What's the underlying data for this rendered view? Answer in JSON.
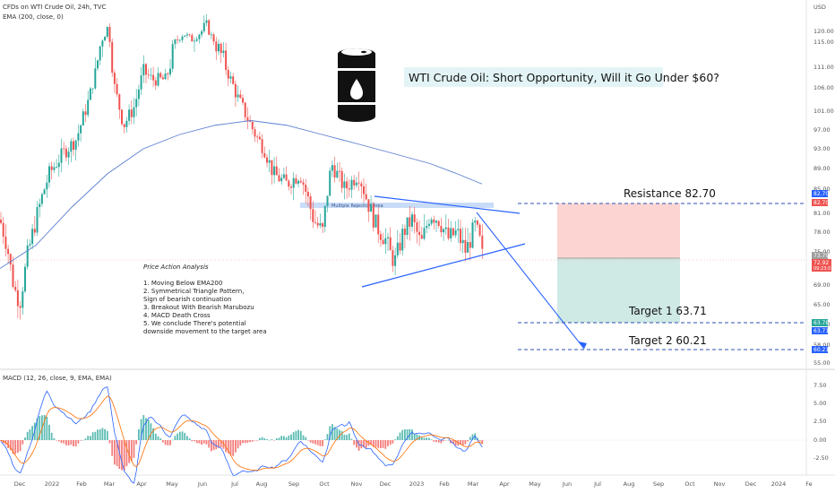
{
  "header": {
    "symbol_line": "CFDs on WTI Crude Oil, 24h, TVC",
    "ema_line": "EMA (200, close, 0)",
    "currency": "USD",
    "macd_line": "MACD (12, 26, close, 9, EMA, EMA)"
  },
  "title": "WTI Crude Oil: Short Opportunity, Will it Go Under $60?",
  "zone_label": "Multiple Rejection Area",
  "analysis": {
    "heading": "Price Action Analysis",
    "lines": [
      "1. Moving Below EMA200",
      "2. Symmetrical Triangle Pattern,",
      "    Sign of bearish continuation",
      "3. Breakout With Bearish Marubozu",
      "4. MACD Death Cross",
      "5. We conclude There's potential",
      "    downside movement to the target area"
    ]
  },
  "levels": {
    "resistance_label": "Resistance 82.70",
    "target1_label": "Target 1   63.71",
    "target2_label": "Target 2   60.21"
  },
  "price_tags": {
    "resistance_blue": "82.70",
    "resistance_red": "82.70",
    "current_grey": "73.79",
    "current_red": "72.92",
    "current_time": "09:23:01",
    "t1_green": "63.78",
    "t1_blue": "63.71",
    "t2_blue": "60.21"
  },
  "colors": {
    "up": "#26a69a",
    "down": "#ef5350",
    "ema": "#5b7fd1",
    "trend": "#2962ff",
    "risk_zone": "#fcd5d3",
    "reward_zone": "#cfe9e4"
  },
  "chart_data": {
    "type": "candlestick",
    "price_axis": {
      "ticks": [
        "120.00",
        "115.00",
        "111.00",
        "106.00",
        "101.00",
        "97.00",
        "93.00",
        "89.00",
        "85.00",
        "81.00",
        "78.00",
        "75.00",
        "69.00",
        "65.00",
        "61.50",
        "58.00",
        "55.00"
      ],
      "values": [
        120,
        115,
        111,
        106,
        101,
        97,
        93,
        89,
        85,
        81,
        78,
        75,
        69,
        65,
        61.5,
        58,
        55
      ]
    },
    "macd_axis": {
      "ticks": [
        "7.50",
        "5.00",
        "2.50",
        "0.00",
        "-2.50"
      ],
      "values": [
        7.5,
        5,
        2.5,
        0,
        -2.5
      ]
    },
    "time_axis": {
      "ticks": [
        "Dec",
        "2022",
        "Feb",
        "Mar",
        "Apr",
        "May",
        "Jun",
        "Jul",
        "Aug",
        "Sep",
        "Oct",
        "Nov",
        "Dec",
        "2023",
        "Feb",
        "Mar",
        "Apr",
        "May",
        "Jun",
        "Jul",
        "Aug",
        "Sep",
        "Oct",
        "Nov",
        "Dec",
        "2024",
        "Fe"
      ]
    },
    "close_path": [
      [
        0,
        80
      ],
      [
        8,
        76
      ],
      [
        15,
        69
      ],
      [
        22,
        65
      ],
      [
        30,
        74
      ],
      [
        40,
        80
      ],
      [
        55,
        88
      ],
      [
        70,
        92
      ],
      [
        85,
        95
      ],
      [
        100,
        104
      ],
      [
        110,
        113
      ],
      [
        120,
        121
      ],
      [
        128,
        106
      ],
      [
        138,
        98
      ],
      [
        150,
        102
      ],
      [
        160,
        110
      ],
      [
        170,
        108
      ],
      [
        185,
        108
      ],
      [
        195,
        115
      ],
      [
        205,
        119
      ],
      [
        215,
        116
      ],
      [
        230,
        122
      ],
      [
        240,
        115
      ],
      [
        250,
        112
      ],
      [
        265,
        104
      ],
      [
        275,
        100
      ],
      [
        285,
        96
      ],
      [
        295,
        93
      ],
      [
        305,
        88
      ],
      [
        320,
        86
      ],
      [
        335,
        88
      ],
      [
        350,
        80
      ],
      [
        360,
        78
      ],
      [
        370,
        90
      ],
      [
        385,
        85
      ],
      [
        400,
        88
      ],
      [
        410,
        83
      ],
      [
        420,
        79
      ],
      [
        430,
        77
      ],
      [
        440,
        73
      ],
      [
        450,
        78
      ],
      [
        460,
        80
      ],
      [
        470,
        76
      ],
      [
        480,
        81
      ],
      [
        490,
        80
      ],
      [
        500,
        77
      ],
      [
        510,
        78
      ],
      [
        520,
        75
      ],
      [
        530,
        79
      ],
      [
        535,
        77
      ],
      [
        540,
        73
      ]
    ],
    "ema200_path": [
      [
        0,
        72
      ],
      [
        40,
        76
      ],
      [
        80,
        82
      ],
      [
        120,
        88
      ],
      [
        160,
        93
      ],
      [
        200,
        96
      ],
      [
        240,
        98
      ],
      [
        280,
        99
      ],
      [
        320,
        98
      ],
      [
        360,
        96
      ],
      [
        400,
        94
      ],
      [
        440,
        92
      ],
      [
        480,
        90
      ],
      [
        510,
        88
      ],
      [
        538,
        86
      ]
    ],
    "levels": {
      "resistance": 82.7,
      "current": 73.79,
      "target1": 63.71,
      "target2": 60.21
    }
  }
}
